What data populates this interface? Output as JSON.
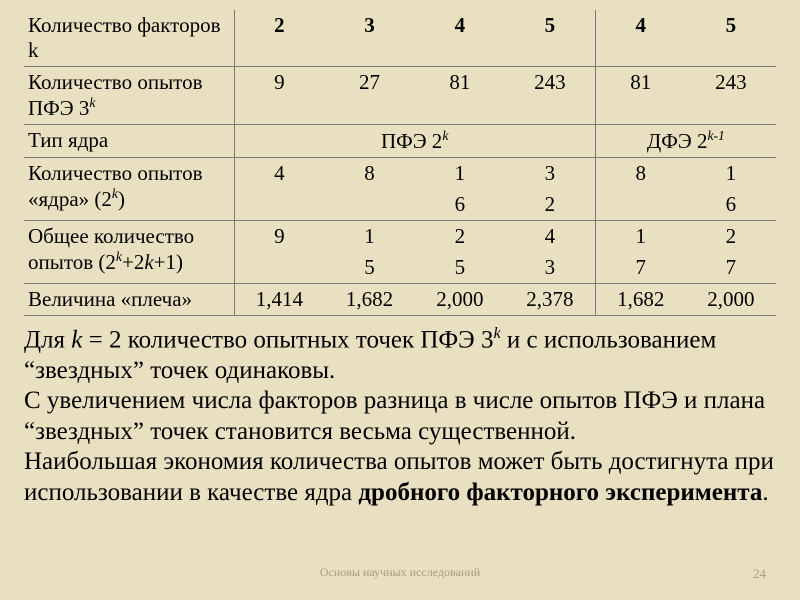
{
  "table": {
    "rows": {
      "factors": {
        "label": "Количество факторов k",
        "vals": [
          "2",
          "3",
          "4",
          "5",
          "4",
          "5"
        ]
      },
      "pfe3k": {
        "label_html": "Количество опытов ПФЭ 3<sup class=\"exp\">k</sup>",
        "vals": [
          "9",
          "27",
          "81",
          "243",
          "81",
          "243"
        ]
      },
      "coretype": {
        "label": "Тип ядра",
        "left_html": "ПФЭ 2<sup class=\"exp\">k</sup>",
        "right_html": "ДФЭ 2<sup class=\"exp\">k-1</sup>"
      },
      "core2k": {
        "label_html": "Количество опытов «ядра» (2<sup class=\"exp\">k</sup>)",
        "top": [
          "4",
          "8",
          "1",
          "3",
          "8",
          "1"
        ],
        "bottom": [
          "",
          "",
          "6",
          "2",
          "",
          "6"
        ]
      },
      "total": {
        "label_html": "Общее количество опытов (2<sup class=\"exp\">k</sup>+2<span class=\"ital\">k</span>+1)",
        "top": [
          "9",
          "1",
          "2",
          "4",
          "1",
          "2"
        ],
        "bottom": [
          "",
          "5",
          "5",
          "3",
          "7",
          "7"
        ]
      },
      "arm": {
        "label": "Величина «плеча»",
        "vals": [
          "1,414",
          "1,682",
          "2,000",
          "2,378",
          "1,682",
          "2,000"
        ]
      }
    }
  },
  "bodytext_html": "Для <span class=\"ital\">k</span> = 2 количество опытных точек ПФЭ 3<sup class=\"exp\">k</sup> и с использованием “звездных” точек одинаковы.<br>С увеличением числа факторов разница в числе опытов ПФЭ и плана “звездных” точек становится весьма существенной.<br>Наибольшая экономия количества опытов может быть достигнута при использовании в качестве ядра <span class=\"bold\">дробного факторного эксперимента</span>.",
  "watermark": "Основы научных исследований",
  "page_number": "24",
  "colors": {
    "background": "#e8e0c0",
    "text": "#000000",
    "rule": "#7a7a7a",
    "watermark": "#a89d7a"
  },
  "fonts": {
    "family": "Times New Roman",
    "table_fontsize_pt": 16,
    "body_fontsize_pt": 19
  }
}
